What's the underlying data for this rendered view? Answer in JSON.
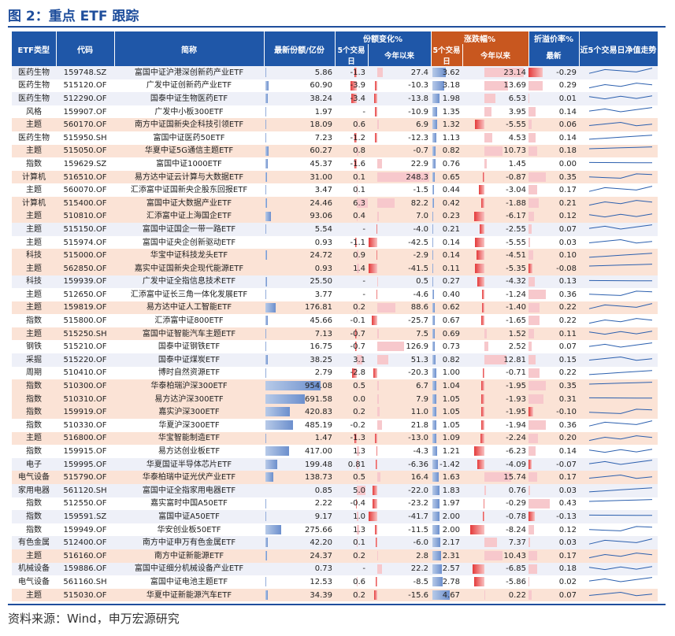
{
  "title": "图 2：重点 ETF 跟踪",
  "source": "资料来源：Wind，申万宏源研究",
  "header": {
    "type": "ETF类型",
    "code": "代码",
    "name": "简称",
    "scale": "最新份额/亿份",
    "share_change": "份额变化%",
    "price_change": "涨跌幅%",
    "premium": "折溢价率%",
    "trend": "近5个交易日净值走势",
    "d5": "5个交易日",
    "ytd": "今年以来",
    "latest": "最新"
  },
  "colors": {
    "header_blue": "#1f57a8",
    "header_orange": "#c8571f",
    "highlight": "#fbe3d6",
    "neg_bar": "#e43a3a"
  },
  "rows": [
    {
      "type": "医药生物",
      "code": "159748.SZ",
      "name": "富国中证沪港深创新药产业ETF",
      "scale": "5.86",
      "s5": "-1.3",
      "sy": "27.4",
      "p5": "3.62",
      "py": "23.14",
      "pr": "-0.29",
      "hl": false
    },
    {
      "type": "医药生物",
      "code": "515120.OF",
      "name": "广发中证创新药产业ETF",
      "scale": "60.90",
      "s5": "-3.9",
      "sy": "-10.3",
      "p5": "3.18",
      "py": "13.69",
      "pr": "0.29",
      "hl": false
    },
    {
      "type": "医药生物",
      "code": "512290.OF",
      "name": "国泰中证生物医药ETF",
      "scale": "38.24",
      "s5": "-3.4",
      "sy": "-13.8",
      "p5": "1.98",
      "py": "6.53",
      "pr": "0.01",
      "hl": false
    },
    {
      "type": "风格",
      "code": "159907.OF",
      "name": "广发中小板300ETF",
      "scale": "1.97",
      "s5": "-",
      "sy": "-10.9",
      "p5": "1.35",
      "py": "3.95",
      "pr": "0.14",
      "hl": false
    },
    {
      "type": "主题",
      "code": "560170.OF",
      "name": "南方中证国新央企科技引领ETF",
      "scale": "18.09",
      "s5": "0.6",
      "sy": "6.9",
      "p5": "1.32",
      "py": "-5.55",
      "pr": "0.06",
      "hl": true
    },
    {
      "type": "医药生物",
      "code": "515950.SH",
      "name": "富国中证医药50ETF",
      "scale": "7.23",
      "s5": "-1.2",
      "sy": "-12.3",
      "p5": "1.13",
      "py": "4.53",
      "pr": "0.14",
      "hl": false
    },
    {
      "type": "主题",
      "code": "515050.OF",
      "name": "华夏中证5G通信主题ETF",
      "scale": "60.27",
      "s5": "0.8",
      "sy": "-0.7",
      "p5": "0.82",
      "py": "10.73",
      "pr": "0.18",
      "hl": true
    },
    {
      "type": "指数",
      "code": "159629.SZ",
      "name": "富国中证1000ETF",
      "scale": "45.37",
      "s5": "-1.6",
      "sy": "22.9",
      "p5": "0.76",
      "py": "1.45",
      "pr": "0.00",
      "hl": false
    },
    {
      "type": "计算机",
      "code": "516510.OF",
      "name": "易方达中证云计算与大数据ETF",
      "scale": "31.00",
      "s5": "0.1",
      "sy": "248.3",
      "p5": "0.65",
      "py": "-0.87",
      "pr": "0.35",
      "hl": true
    },
    {
      "type": "主题",
      "code": "560070.OF",
      "name": "汇添富中证国新央企股东回报ETF",
      "scale": "3.47",
      "s5": "0.1",
      "sy": "-1.5",
      "p5": "0.44",
      "py": "-3.04",
      "pr": "0.17",
      "hl": false
    },
    {
      "type": "计算机",
      "code": "515400.OF",
      "name": "富国中证大数据产业ETF",
      "scale": "24.46",
      "s5": "6.3",
      "sy": "82.2",
      "p5": "0.42",
      "py": "-1.88",
      "pr": "0.21",
      "hl": true
    },
    {
      "type": "主题",
      "code": "510810.OF",
      "name": "汇添富中证上海国企ETF",
      "scale": "93.06",
      "s5": "0.4",
      "sy": "7.0",
      "p5": "0.23",
      "py": "-6.17",
      "pr": "0.12",
      "hl": true
    },
    {
      "type": "主题",
      "code": "515150.OF",
      "name": "富国中证国企一带一路ETF",
      "scale": "5.54",
      "s5": "-",
      "sy": "-4.0",
      "p5": "0.21",
      "py": "-2.55",
      "pr": "0.07",
      "hl": false
    },
    {
      "type": "主题",
      "code": "515974.OF",
      "name": "富国中证央企创新驱动ETF",
      "scale": "0.93",
      "s5": "-1.1",
      "sy": "-42.5",
      "p5": "0.14",
      "py": "-5.55",
      "pr": "0.03",
      "hl": false
    },
    {
      "type": "科技",
      "code": "515000.OF",
      "name": "华宝中证科技龙头ETF",
      "scale": "24.72",
      "s5": "0.9",
      "sy": "-2.9",
      "p5": "0.14",
      "py": "-4.51",
      "pr": "0.10",
      "hl": true
    },
    {
      "type": "主题",
      "code": "562850.OF",
      "name": "嘉实中证国新央企现代能源ETF",
      "scale": "0.93",
      "s5": "1.4",
      "sy": "-41.5",
      "p5": "0.11",
      "py": "-5.35",
      "pr": "-0.08",
      "hl": true
    },
    {
      "type": "科技",
      "code": "159939.OF",
      "name": "广发中证全指信息技术ETF",
      "scale": "25.50",
      "s5": "-",
      "sy": "0.5",
      "p5": "0.27",
      "py": "-4.32",
      "pr": "0.13",
      "hl": false
    },
    {
      "type": "主题",
      "code": "512650.OF",
      "name": "汇添富中证长三角一体化发展ETF",
      "scale": "3.77",
      "s5": "-",
      "sy": "-4.6",
      "p5": "0.40",
      "py": "-1.24",
      "pr": "0.36",
      "hl": false
    },
    {
      "type": "主题",
      "code": "159819.OF",
      "name": "易方达中证人工智能ETF",
      "scale": "176.81",
      "s5": "0.2",
      "sy": "88.6",
      "p5": "0.62",
      "py": "-1.40",
      "pr": "0.22",
      "hl": true
    },
    {
      "type": "指数",
      "code": "515800.OF",
      "name": "汇添富中证800ETF",
      "scale": "45.66",
      "s5": "-0.1",
      "sy": "-25.7",
      "p5": "0.67",
      "py": "-1.65",
      "pr": "0.22",
      "hl": false
    },
    {
      "type": "主题",
      "code": "515250.SH",
      "name": "富国中证智能汽车主题ETF",
      "scale": "7.13",
      "s5": "-0.7",
      "sy": "7.5",
      "p5": "0.69",
      "py": "1.52",
      "pr": "0.11",
      "hl": true
    },
    {
      "type": "钢铁",
      "code": "515210.OF",
      "name": "国泰中证钢铁ETF",
      "scale": "16.75",
      "s5": "-0.7",
      "sy": "126.9",
      "p5": "0.73",
      "py": "2.52",
      "pr": "0.07",
      "hl": false
    },
    {
      "type": "采掘",
      "code": "515220.OF",
      "name": "国泰中证煤炭ETF",
      "scale": "38.25",
      "s5": "3.1",
      "sy": "51.3",
      "p5": "0.82",
      "py": "12.81",
      "pr": "0.15",
      "hl": false
    },
    {
      "type": "周期",
      "code": "510410.OF",
      "name": "博时自然资源ETF",
      "scale": "2.79",
      "s5": "-2.8",
      "sy": "-20.3",
      "p5": "1.00",
      "py": "-0.71",
      "pr": "0.22",
      "hl": false
    },
    {
      "type": "指数",
      "code": "510300.OF",
      "name": "华泰柏瑞沪深300ETF",
      "scale": "954.08",
      "s5": "0.5",
      "sy": "6.7",
      "p5": "1.04",
      "py": "-1.95",
      "pr": "0.35",
      "hl": true
    },
    {
      "type": "指数",
      "code": "510310.OF",
      "name": "易方达沪深300ETF",
      "scale": "691.58",
      "s5": "0.0",
      "sy": "7.9",
      "p5": "1.05",
      "py": "-1.93",
      "pr": "0.31",
      "hl": true
    },
    {
      "type": "指数",
      "code": "159919.OF",
      "name": "嘉实沪深300ETF",
      "scale": "420.83",
      "s5": "0.2",
      "sy": "11.0",
      "p5": "1.05",
      "py": "-1.95",
      "pr": "-0.10",
      "hl": true
    },
    {
      "type": "指数",
      "code": "510330.OF",
      "name": "华夏沪深300ETF",
      "scale": "485.19",
      "s5": "-0.2",
      "sy": "21.8",
      "p5": "1.05",
      "py": "-1.94",
      "pr": "0.36",
      "hl": false
    },
    {
      "type": "主题",
      "code": "516800.OF",
      "name": "华宝智能制造ETF",
      "scale": "1.47",
      "s5": "-1.3",
      "sy": "-13.0",
      "p5": "1.09",
      "py": "-2.24",
      "pr": "0.20",
      "hl": true
    },
    {
      "type": "指数",
      "code": "159915.OF",
      "name": "易方达创业板ETF",
      "scale": "417.00",
      "s5": "1.3",
      "sy": "-4.3",
      "p5": "1.21",
      "py": "-6.23",
      "pr": "0.14",
      "hl": false
    },
    {
      "type": "电子",
      "code": "159995.OF",
      "name": "华夏国证半导体芯片ETF",
      "scale": "199.48",
      "s5": "0.81",
      "sy": "-6.36",
      "p5": "-1.42",
      "py": "-4.09",
      "pr": "-0.07",
      "hl": false
    },
    {
      "type": "电气设备",
      "code": "515790.OF",
      "name": "华泰柏瑞中证光伏产业ETF",
      "scale": "138.73",
      "s5": "0.5",
      "sy": "16.4",
      "p5": "1.63",
      "py": "15.74",
      "pr": "0.17",
      "hl": true
    },
    {
      "type": "家用电器",
      "code": "561120.SH",
      "name": "富国中证全指家用电器ETF",
      "scale": "0.85",
      "s5": "5.0",
      "sy": "-22.0",
      "p5": "1.83",
      "py": "0.76",
      "pr": "0.03",
      "hl": false
    },
    {
      "type": "指数",
      "code": "512550.OF",
      "name": "嘉实富时中国A50ETF",
      "scale": "2.22",
      "s5": "-0.4",
      "sy": "-23.2",
      "p5": "1.97",
      "py": "-0.29",
      "pr": "0.43",
      "hl": false
    },
    {
      "type": "指数",
      "code": "159591.SZ",
      "name": "富国中证A50ETF",
      "scale": "9.17",
      "s5": "1.0",
      "sy": "-41.7",
      "p5": "2.00",
      "py": "-0.78",
      "pr": "-0.13",
      "hl": false
    },
    {
      "type": "指数",
      "code": "159949.OF",
      "name": "华安创业板50ETF",
      "scale": "275.66",
      "s5": "1.3",
      "sy": "-11.5",
      "p5": "2.00",
      "py": "-8.24",
      "pr": "0.12",
      "hl": false
    },
    {
      "type": "有色金属",
      "code": "512400.OF",
      "name": "南方中证申万有色金属ETF",
      "scale": "42.20",
      "s5": "0.1",
      "sy": "-6.0",
      "p5": "2.17",
      "py": "7.37",
      "pr": "0.03",
      "hl": false
    },
    {
      "type": "主题",
      "code": "516160.OF",
      "name": "南方中证新能源ETF",
      "scale": "24.37",
      "s5": "0.2",
      "sy": "2.8",
      "p5": "2.31",
      "py": "10.43",
      "pr": "0.17",
      "hl": true
    },
    {
      "type": "机械设备",
      "code": "159886.OF",
      "name": "富国中证细分机械设备产业ETF",
      "scale": "0.73",
      "s5": "-",
      "sy": "22.2",
      "p5": "2.57",
      "py": "-6.85",
      "pr": "0.18",
      "hl": false
    },
    {
      "type": "电气设备",
      "code": "561160.SH",
      "name": "富国中证电池主题ETF",
      "scale": "12.53",
      "s5": "0.6",
      "sy": "-8.5",
      "p5": "2.78",
      "py": "-5.86",
      "pr": "0.02",
      "hl": false
    },
    {
      "type": "主题",
      "code": "515030.OF",
      "name": "华夏中证新能源汽车ETF",
      "scale": "34.39",
      "s5": "0.2",
      "sy": "-15.6",
      "p5": "4.67",
      "py": "0.22",
      "pr": "0.07",
      "hl": true
    }
  ]
}
